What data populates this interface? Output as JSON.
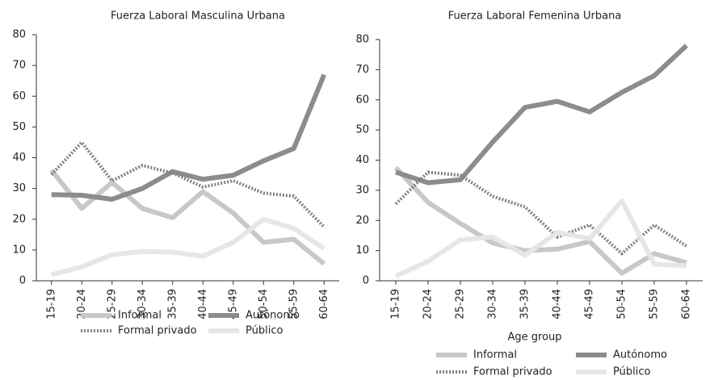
{
  "chart_data": [
    {
      "type": "line",
      "title": "Fuerza Laboral Masculina Urbana",
      "categories": [
        "15-19",
        "20-24",
        "25-29",
        "30-34",
        "35-39",
        "40-44",
        "45-49",
        "50-54",
        "55-59",
        "60-64"
      ],
      "series": [
        {
          "name": "Informal",
          "color": "#c8c8c8",
          "values": [
            36,
            23.5,
            32,
            23.5,
            20.5,
            29,
            22,
            12.5,
            13.5,
            5.5
          ]
        },
        {
          "name": "Autónomo",
          "color": "#8c8c8c",
          "values": [
            28,
            27.8,
            26.5,
            30,
            35.5,
            33,
            34.3,
            39,
            43,
            67
          ]
        },
        {
          "name": "Formal privado",
          "color": "#808080",
          "dotted": true,
          "values": [
            34.5,
            45,
            32.5,
            37.5,
            35,
            30.5,
            32.5,
            28.5,
            27.5,
            17.5
          ]
        },
        {
          "name": "Público",
          "color": "#e6e6e6",
          "values": [
            2,
            4.5,
            8.5,
            9.5,
            9.3,
            8,
            12.5,
            20,
            17,
            10.5
          ]
        }
      ],
      "ylim": [
        0,
        80
      ],
      "yticks": [
        0,
        10,
        20,
        30,
        40,
        50,
        60,
        70,
        80
      ]
    },
    {
      "type": "line",
      "title": "Fuerza Laboral Femenina Urbana",
      "x_label": "Age group",
      "categories": [
        "15-19",
        "20-24",
        "25-29",
        "30-34",
        "35-39",
        "40-44",
        "45-49",
        "50-54",
        "55-59",
        "60-64"
      ],
      "series": [
        {
          "name": "Informal",
          "color": "#c8c8c8",
          "values": [
            37.5,
            26,
            19,
            12.5,
            10,
            10.5,
            13,
            2.5,
            9,
            6
          ]
        },
        {
          "name": "Autónomo",
          "color": "#8c8c8c",
          "values": [
            36,
            32.5,
            33.5,
            46,
            57.5,
            59.5,
            56,
            62.5,
            68,
            78
          ]
        },
        {
          "name": "Formal privado",
          "color": "#808080",
          "dotted": true,
          "values": [
            25.5,
            36,
            35,
            28,
            24.5,
            14.5,
            18.5,
            9,
            18.5,
            11.5
          ]
        },
        {
          "name": "Público",
          "color": "#e6e6e6",
          "values": [
            1.5,
            6.5,
            13.5,
            14.5,
            8.5,
            16,
            14,
            26.5,
            5.5,
            5
          ]
        }
      ],
      "ylim": [
        0,
        80
      ],
      "yticks": [
        0,
        10,
        20,
        30,
        40,
        50,
        60,
        70,
        80
      ]
    }
  ]
}
